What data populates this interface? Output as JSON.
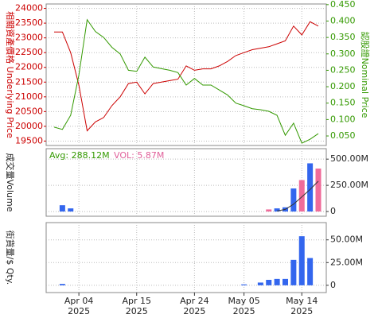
{
  "chart_data": [
    {
      "type": "line",
      "ylabel": "相關資產價格 Underlying Price",
      "y2label": "認股證Nominal Price",
      "series": [
        {
          "color": "#cc0000",
          "values": [
            23200,
            23200,
            22500,
            21400,
            19850,
            20150,
            20300,
            20700,
            21000,
            21450,
            21500,
            21100,
            21450,
            21500,
            21550,
            21600,
            22050,
            21900,
            21950,
            21950,
            22050,
            22200,
            22400,
            22500,
            22600,
            22650,
            22700,
            22800,
            22900,
            23400,
            23100,
            23550,
            23400
          ]
        },
        {
          "color": "#339900",
          "axis": "y2",
          "values": [
            0.077,
            0.07,
            0.113,
            0.235,
            0.404,
            0.368,
            0.35,
            0.32,
            0.3,
            0.25,
            0.247,
            0.29,
            0.26,
            0.255,
            0.25,
            0.243,
            0.205,
            0.225,
            0.205,
            0.205,
            0.19,
            0.175,
            0.15,
            0.142,
            0.133,
            0.13,
            0.125,
            0.113,
            0.052,
            0.089,
            0.028,
            0.04,
            0.057
          ]
        }
      ],
      "ylim": [
        19350,
        24150
      ],
      "yticks": [
        19500,
        20000,
        20500,
        21000,
        21500,
        22000,
        22500,
        23000,
        23500,
        24000
      ],
      "y2lim": [
        0.021,
        0.452
      ],
      "y2ticks": [
        {
          "value": 0.05,
          "label": "0.050"
        },
        {
          "value": 0.1,
          "label": "0.100"
        },
        {
          "value": 0.15,
          "label": "0.150"
        },
        {
          "value": 0.2,
          "label": "0.200"
        },
        {
          "value": 0.25,
          "label": "0.250"
        },
        {
          "value": 0.3,
          "label": "0.300"
        },
        {
          "value": 0.35,
          "label": "0.350"
        },
        {
          "value": 0.4,
          "label": "0.400"
        },
        {
          "value": 0.45,
          "label": "0.450"
        }
      ],
      "grid": true
    },
    {
      "type": "bar",
      "ylabel": "成交量Volume",
      "annotations": [
        "Avg: 288.12M",
        "VOL: 5.87M"
      ],
      "annotation_colors": [
        "#339900",
        "#e0609a"
      ],
      "series": [
        {
          "color": "#3366ee",
          "values": [
            null,
            60,
            30,
            null,
            null,
            null,
            null,
            null,
            null,
            null,
            null,
            null,
            null,
            null,
            null,
            null,
            null,
            null,
            null,
            null,
            null,
            null,
            null,
            null,
            null,
            null,
            null,
            30,
            40,
            220,
            null,
            460,
            null
          ]
        },
        {
          "color": "#f06b9a",
          "values": [
            null,
            null,
            null,
            null,
            null,
            null,
            null,
            null,
            null,
            null,
            null,
            null,
            null,
            null,
            null,
            null,
            null,
            null,
            null,
            null,
            null,
            null,
            null,
            null,
            null,
            null,
            20,
            null,
            null,
            null,
            300,
            null,
            410
          ]
        },
        {
          "color": "#333333",
          "type": "line",
          "values": [
            null,
            null,
            null,
            null,
            null,
            null,
            null,
            null,
            null,
            null,
            null,
            null,
            null,
            null,
            null,
            null,
            null,
            null,
            null,
            null,
            null,
            null,
            null,
            null,
            null,
            null,
            null,
            5,
            20,
            70,
            140,
            210,
            290
          ]
        }
      ],
      "ylim": [
        -45,
        600
      ],
      "yticks": [
        0,
        {
          "value": 250,
          "label": "250.00M"
        },
        {
          "value": 500,
          "label": "500.00M"
        }
      ],
      "grid": true
    },
    {
      "type": "bar",
      "ylabel": "街貨量/$ Qty.",
      "series": [
        {
          "color": "#3366ee",
          "values": [
            null,
            1.5,
            null,
            null,
            null,
            null,
            null,
            null,
            null,
            null,
            null,
            null,
            null,
            null,
            null,
            null,
            null,
            null,
            null,
            null,
            null,
            null,
            null,
            1,
            null,
            3,
            6,
            7,
            7,
            28,
            54,
            30,
            null
          ]
        }
      ],
      "ylim": [
        -8,
        69
      ],
      "yticks": [
        0,
        {
          "value": 25,
          "label": "25.00M"
        },
        {
          "value": 50,
          "label": "50.00M"
        }
      ],
      "categories": [
        null,
        null,
        null,
        "Apr 04 2025",
        null,
        null,
        null,
        null,
        null,
        null,
        "Apr 15 2025",
        null,
        null,
        null,
        null,
        null,
        null,
        "Apr 24 2025",
        null,
        null,
        null,
        null,
        null,
        "May 05 2025",
        null,
        null,
        null,
        null,
        null,
        null,
        "May 14 2025",
        null,
        null
      ],
      "grid": true
    }
  ]
}
